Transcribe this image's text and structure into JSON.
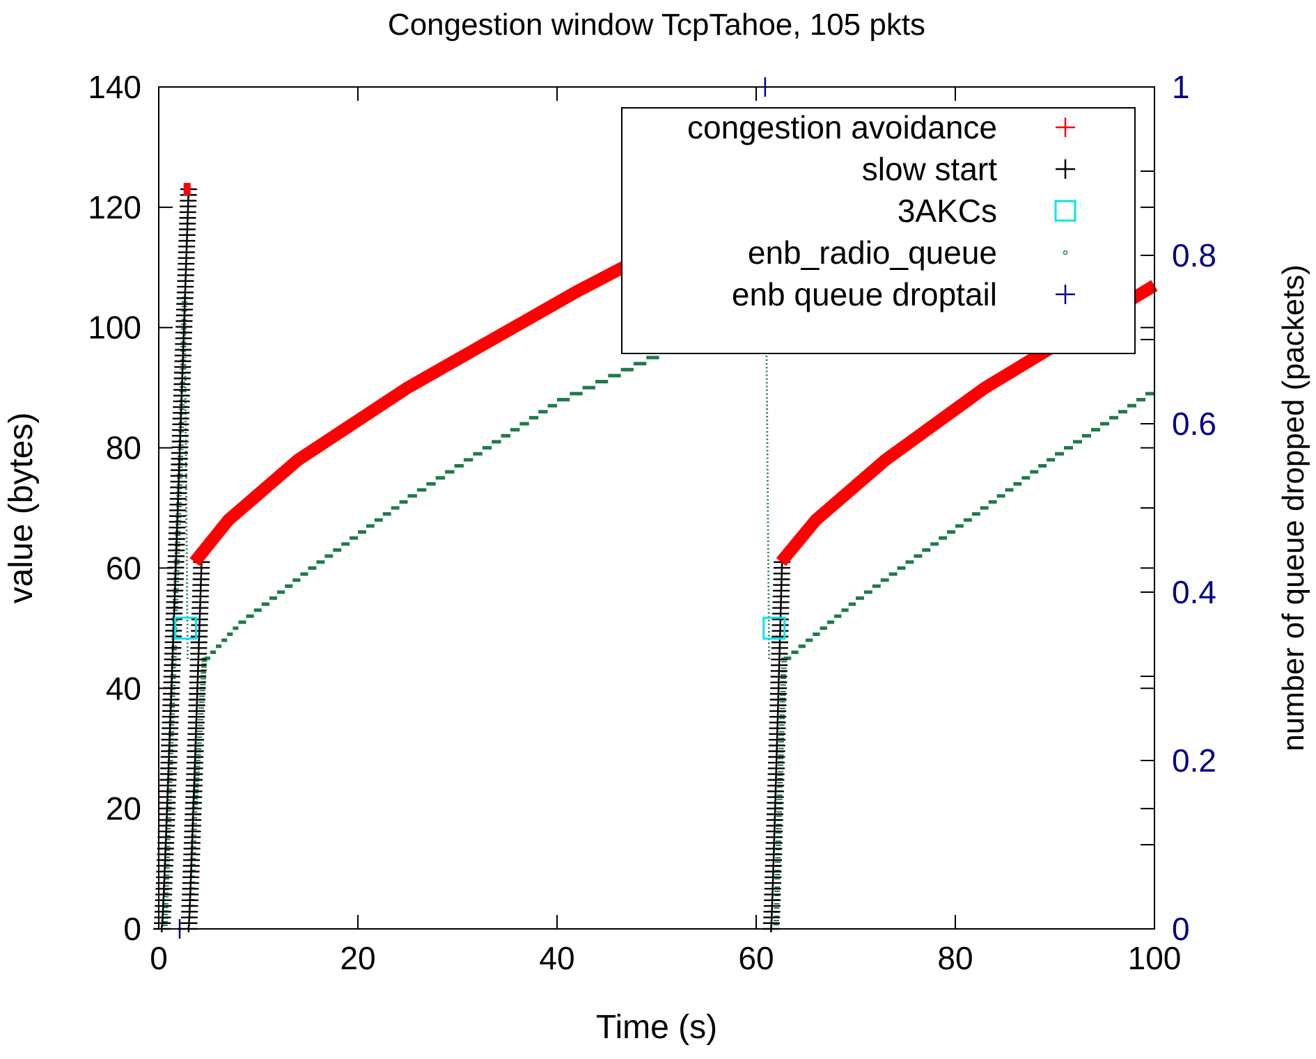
{
  "chart_data": {
    "type": "scatter",
    "title": "Congestion window TcpTahoe, 105 pkts",
    "xlabel": "Time (s)",
    "ylabel": "value (bytes)",
    "y2label": "number of queue dropped (packets)",
    "xlim": [
      0,
      100
    ],
    "ylim": [
      0,
      140
    ],
    "y2lim": [
      0,
      1
    ],
    "x_ticks": [
      "0",
      "20",
      "40",
      "60",
      "80",
      "100"
    ],
    "y_ticks": [
      "0",
      "20",
      "40",
      "60",
      "80",
      "100",
      "120",
      "140"
    ],
    "y2_ticks": [
      "0",
      "0.2",
      "0.4",
      "0.6",
      "0.8",
      "1"
    ],
    "grid": false,
    "legend_position": "top-right",
    "colors": {
      "congestion_avoidance": "#ff0000",
      "slow_start": "#000000",
      "three_acks": "#00e5ee",
      "radio_queue": "#1e7a4a",
      "droptail": "#00008b",
      "y2_axis": "#00008b"
    },
    "series": [
      {
        "name": "congestion avoidance",
        "marker": "plus",
        "segments": [
          {
            "x": [
              2.5,
              3.2
            ],
            "y": [
              123,
              123
            ]
          },
          {
            "x": [
              3.6,
              7,
              14,
              25,
              42,
              60.5
            ],
            "y": [
              61,
              68,
              78,
              90,
              106,
              122
            ]
          },
          {
            "x": [
              62.5,
              66,
              73,
              83,
              100
            ],
            "y": [
              61,
              68,
              78,
              90,
              107
            ]
          }
        ]
      },
      {
        "name": "slow start",
        "marker": "plus",
        "segments": [
          {
            "x_start": 0.3,
            "x_end": 3.0,
            "y_start": 0,
            "y_end": 123
          },
          {
            "x_start": 3.0,
            "x_end": 4.3,
            "y_start": 0,
            "y_end": 61
          },
          {
            "x_start": 61.5,
            "x_end": 62.6,
            "y_start": 0,
            "y_end": 61
          }
        ]
      },
      {
        "name": "3AKCs",
        "marker": "square",
        "x": [
          2.7,
          61.8
        ],
        "y": [
          50,
          50
        ]
      },
      {
        "name": "enb_radio_queue",
        "marker": "dot",
        "segments": [
          {
            "x": [
              0.6,
              2.2,
              2.6
            ],
            "y": [
              0,
              80,
              105
            ]
          },
          {
            "x": [
              2.6,
              2.9
            ],
            "y": [
              105,
              45
            ]
          },
          {
            "x": [
              3.2,
              3.6,
              4.6
            ],
            "y": [
              0,
              20,
              45
            ]
          },
          {
            "x": [
              4.6,
              8,
              15,
              25,
              40,
              60.5
            ],
            "y": [
              45,
              51,
              60,
              72,
              88,
              104
            ]
          },
          {
            "x": [
              61,
              61.3
            ],
            "y": [
              104,
              45
            ]
          },
          {
            "x": [
              62.0,
              62.4,
              62.8
            ],
            "y": [
              0,
              25,
              45
            ]
          },
          {
            "x": [
              62.8,
              70,
              80,
              90,
              100
            ],
            "y": [
              45,
              55,
              67,
              79,
              90
            ]
          }
        ]
      },
      {
        "name": "enb queue droptail",
        "marker": "plus",
        "axis": "y2",
        "x": [
          2.1,
          60.9
        ],
        "y": [
          0,
          1
        ]
      }
    ]
  }
}
